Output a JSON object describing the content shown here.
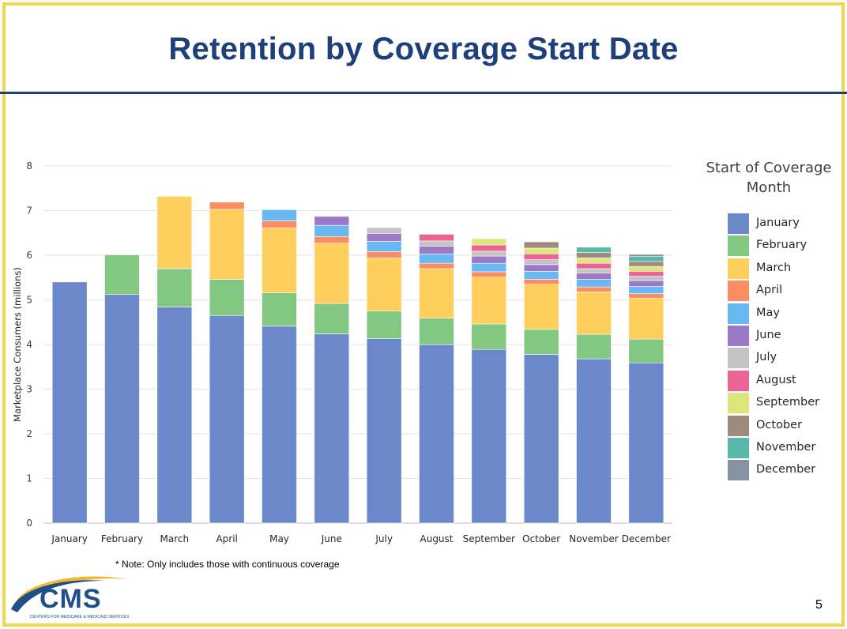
{
  "slide": {
    "title": "Retention by Coverage Start Date",
    "note": "* Note: Only includes those with continuous coverage",
    "page_number": "5",
    "logo_text": "CMS",
    "logo_subtext": "CENTERS FOR MEDICARE & MEDICAID SERVICES"
  },
  "legend": {
    "title_line1": "Start of Coverage",
    "title_line2": "Month"
  },
  "chart_data": {
    "type": "bar",
    "stacked": true,
    "ylabel": "Marketplace Consumers (millions)",
    "xlabel": "",
    "ylim": [
      0,
      8
    ],
    "yticks": [
      0,
      1,
      2,
      3,
      4,
      5,
      6,
      7,
      8
    ],
    "grid": true,
    "legend_position": "right",
    "categories": [
      "January",
      "February",
      "March",
      "April",
      "May",
      "June",
      "July",
      "August",
      "September",
      "October",
      "November",
      "December"
    ],
    "series": [
      {
        "name": "January",
        "color": "#6a88ca",
        "values": [
          5.4,
          5.12,
          4.84,
          4.65,
          4.41,
          4.24,
          4.13,
          4.0,
          3.89,
          3.78,
          3.68,
          3.59
        ]
      },
      {
        "name": "February",
        "color": "#82c882",
        "values": [
          0,
          0.89,
          0.86,
          0.81,
          0.75,
          0.68,
          0.62,
          0.59,
          0.57,
          0.56,
          0.55,
          0.53
        ]
      },
      {
        "name": "March",
        "color": "#ffcf5e",
        "values": [
          0,
          0,
          1.62,
          1.57,
          1.45,
          1.35,
          1.19,
          1.11,
          1.05,
          1.01,
          0.95,
          0.92
        ]
      },
      {
        "name": "April",
        "color": "#fb8c63",
        "values": [
          0,
          0,
          0,
          0.16,
          0.16,
          0.15,
          0.14,
          0.12,
          0.12,
          0.11,
          0.11,
          0.1
        ]
      },
      {
        "name": "May",
        "color": "#6ab8f2",
        "values": [
          0,
          0,
          0,
          0,
          0.25,
          0.25,
          0.23,
          0.21,
          0.19,
          0.18,
          0.17,
          0.16
        ]
      },
      {
        "name": "June",
        "color": "#9a7ac8",
        "values": [
          0,
          0,
          0,
          0,
          0,
          0.2,
          0.18,
          0.17,
          0.16,
          0.15,
          0.14,
          0.13
        ]
      },
      {
        "name": "July",
        "color": "#c4c4c4",
        "values": [
          0,
          0,
          0,
          0,
          0,
          0,
          0.13,
          0.12,
          0.11,
          0.11,
          0.1,
          0.1
        ]
      },
      {
        "name": "August",
        "color": "#ec6494",
        "values": [
          0,
          0,
          0,
          0,
          0,
          0,
          0,
          0.15,
          0.14,
          0.13,
          0.12,
          0.11
        ]
      },
      {
        "name": "September",
        "color": "#dce67a",
        "values": [
          0,
          0,
          0,
          0,
          0,
          0,
          0,
          0,
          0.14,
          0.13,
          0.12,
          0.11
        ]
      },
      {
        "name": "October",
        "color": "#a08a7e",
        "values": [
          0,
          0,
          0,
          0,
          0,
          0,
          0,
          0,
          0,
          0.14,
          0.12,
          0.11
        ]
      },
      {
        "name": "November",
        "color": "#58b8aa",
        "values": [
          0,
          0,
          0,
          0,
          0,
          0,
          0,
          0,
          0,
          0,
          0.12,
          0.11
        ]
      },
      {
        "name": "December",
        "color": "#8592a0",
        "values": [
          0,
          0,
          0,
          0,
          0,
          0,
          0,
          0,
          0,
          0,
          0,
          0.05
        ]
      }
    ]
  }
}
